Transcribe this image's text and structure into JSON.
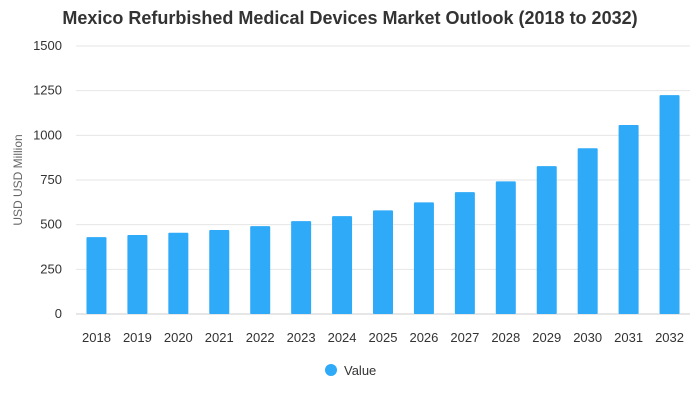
{
  "chart_data": {
    "type": "bar",
    "title": "Mexico Refurbished Medical Devices Market Outlook (2018 to 2032)",
    "xlabel": "",
    "ylabel": "USD USD Million",
    "categories": [
      "2018",
      "2019",
      "2020",
      "2021",
      "2022",
      "2023",
      "2024",
      "2025",
      "2026",
      "2027",
      "2028",
      "2029",
      "2030",
      "2031",
      "2032"
    ],
    "series": [
      {
        "name": "Value",
        "values": [
          430,
          442,
          455,
          470,
          492,
          520,
          548,
          580,
          625,
          682,
          742,
          828,
          928,
          1058,
          1225
        ]
      }
    ],
    "yticks": [
      "0",
      "250",
      "500",
      "750",
      "1000",
      "1250",
      "1500"
    ],
    "ylim": [
      0,
      1500
    ],
    "grid": true,
    "legend_position": "bottom-center",
    "bar_color": "#2eaaf8"
  }
}
